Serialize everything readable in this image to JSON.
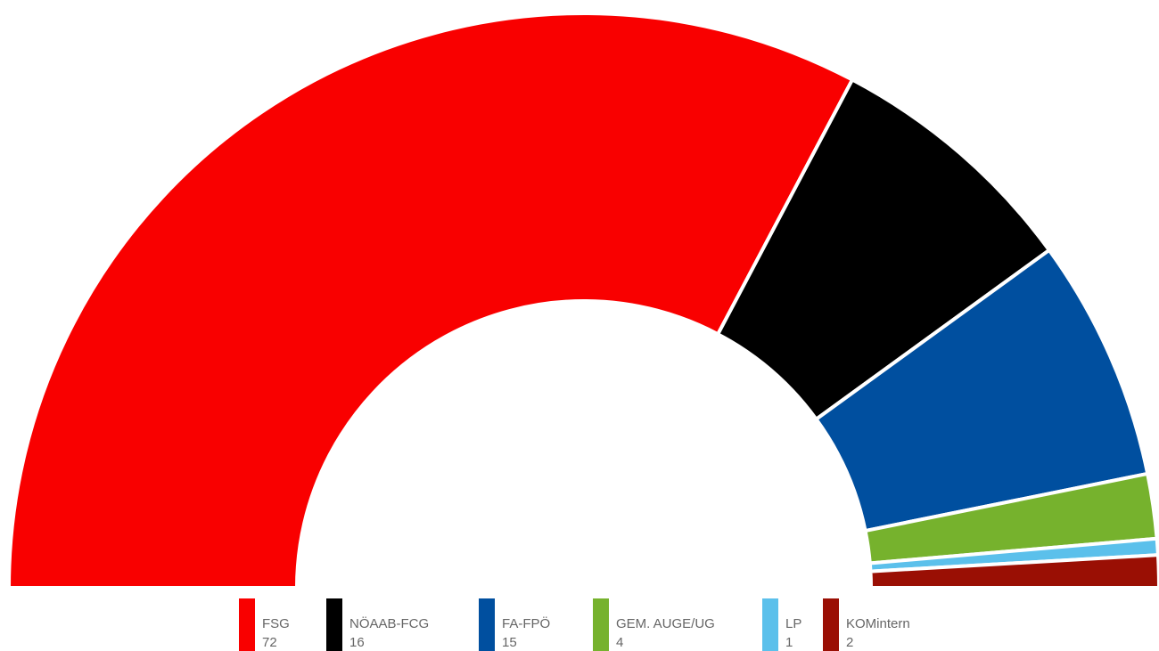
{
  "chart_data": {
    "type": "semi-donut",
    "categories": [
      "FSG",
      "NÖAAB-FCG",
      "FA-FPÖ",
      "GEM. AUGE/UG",
      "LP",
      "KOMintern"
    ],
    "values": [
      72,
      16,
      15,
      4,
      1,
      2
    ],
    "colors": [
      "#f90000",
      "#000000",
      "#004f9f",
      "#76b22d",
      "#5bc0eb",
      "#9a0f04"
    ],
    "legend": "bottom"
  }
}
